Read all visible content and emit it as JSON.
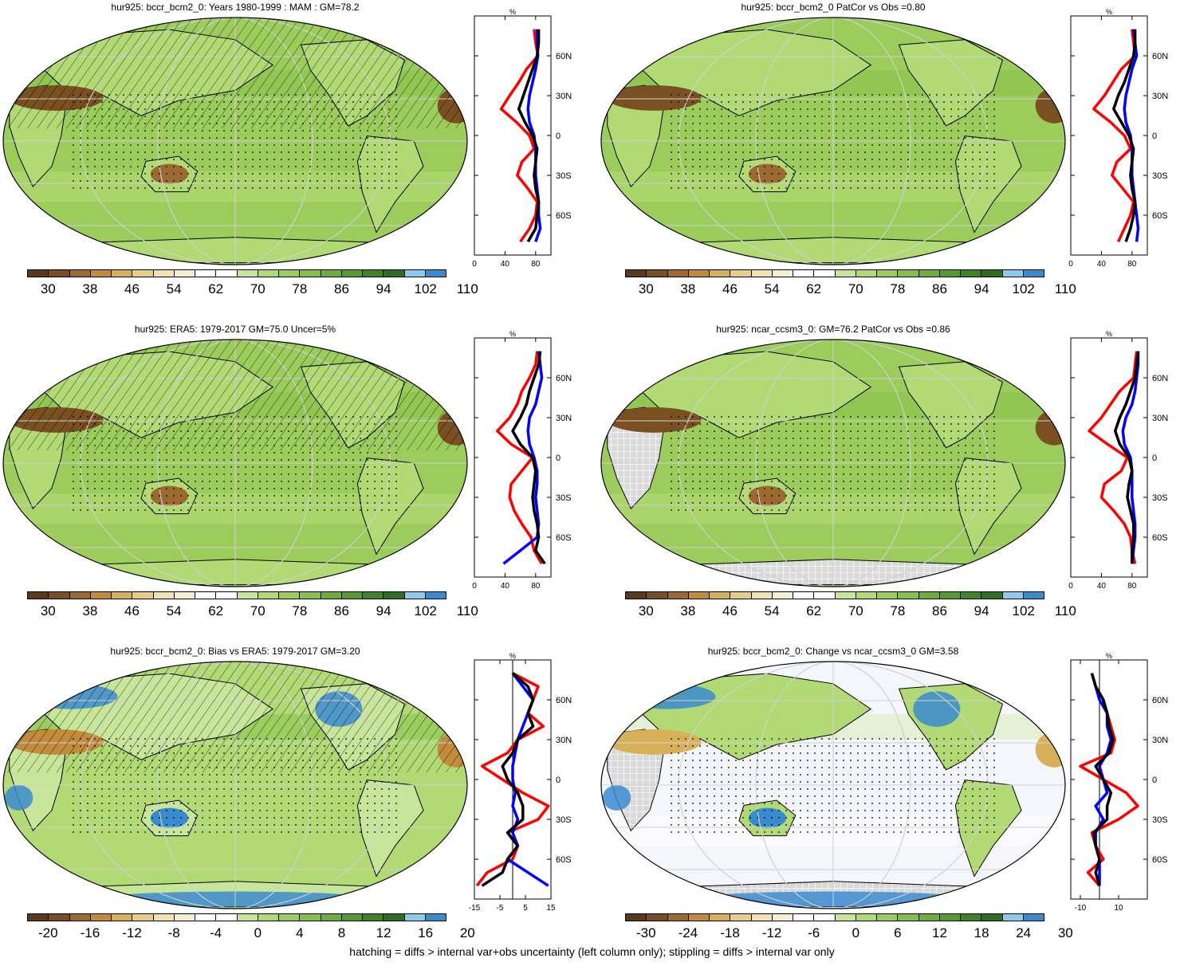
{
  "footnote": "hatching = diffs > internal var+obs uncertainty (left column only); stippling = diffs > internal var only",
  "chart_data": [
    {
      "type": "heatmap",
      "title": "hur925: bccr_bcm2_0: Years 1980-1999 : MAM : GM=78.2",
      "colorbar": {
        "colors": [
          "#5a3a1a",
          "#7a4f22",
          "#9c6a30",
          "#c28c3c",
          "#d8b05a",
          "#e8cd86",
          "#f2e2b0",
          "#f7efd2",
          "#ffffff",
          "#ffffff",
          "#c8e69a",
          "#b2da74",
          "#9ccd5c",
          "#86bf4a",
          "#6fae3c",
          "#579a32",
          "#3f8428",
          "#2d6e20",
          "#8ccbee",
          "#3a8ad0"
        ],
        "labels": [
          "30",
          "38",
          "46",
          "54",
          "62",
          "70",
          "78",
          "86",
          "94",
          "102",
          "110"
        ]
      },
      "profile": {
        "xlabel": "%",
        "xticks": [
          "0",
          "40",
          "80"
        ],
        "xlim": [
          0,
          100
        ],
        "yticks": [
          "60N",
          "30N",
          "0",
          "30S",
          "60S"
        ],
        "lat": [
          80,
          70,
          60,
          50,
          40,
          30,
          20,
          10,
          0,
          -10,
          -20,
          -30,
          -40,
          -50,
          -60,
          -70,
          -80
        ],
        "series": [
          {
            "color": "#ff0000",
            "values": [
              78,
              80,
              83,
              68,
              58,
              46,
              35,
              55,
              72,
              78,
              62,
              56,
              70,
              82,
              80,
              72,
              60
            ]
          },
          {
            "color": "#0000ff",
            "values": [
              82,
              82,
              83,
              80,
              76,
              72,
              70,
              72,
              78,
              80,
              80,
              80,
              82,
              84,
              84,
              86,
              80
            ]
          },
          {
            "color": "#000000",
            "values": [
              84,
              84,
              82,
              76,
              70,
              64,
              58,
              66,
              76,
              82,
              80,
              78,
              80,
              84,
              82,
              80,
              70
            ]
          }
        ]
      }
    },
    {
      "type": "heatmap",
      "title": "hur925: bccr_bcm2_0 PatCor vs Obs =0.80",
      "colorbar": {
        "colors": [
          "#5a3a1a",
          "#7a4f22",
          "#9c6a30",
          "#c28c3c",
          "#d8b05a",
          "#e8cd86",
          "#f2e2b0",
          "#f7efd2",
          "#ffffff",
          "#ffffff",
          "#c8e69a",
          "#b2da74",
          "#9ccd5c",
          "#86bf4a",
          "#6fae3c",
          "#579a32",
          "#3f8428",
          "#2d6e20",
          "#8ccbee",
          "#3a8ad0"
        ],
        "labels": [
          "30",
          "38",
          "46",
          "54",
          "62",
          "70",
          "78",
          "86",
          "94",
          "102",
          "110"
        ]
      },
      "profile": {
        "xlabel": "%",
        "xticks": [
          "0",
          "40",
          "80"
        ],
        "xlim": [
          0,
          100
        ],
        "yticks": [
          "60N",
          "30N",
          "0",
          "30S",
          "60S"
        ],
        "lat": [
          80,
          70,
          60,
          50,
          40,
          30,
          20,
          10,
          0,
          -10,
          -20,
          -30,
          -40,
          -50,
          -60,
          -70,
          -80
        ],
        "series": [
          {
            "color": "#ff0000",
            "values": [
              80,
              82,
              84,
              66,
              55,
              44,
              30,
              52,
              70,
              78,
              60,
              54,
              68,
              82,
              78,
              70,
              62
            ]
          },
          {
            "color": "#0000ff",
            "values": [
              82,
              84,
              86,
              80,
              76,
              72,
              70,
              72,
              78,
              80,
              80,
              80,
              82,
              84,
              86,
              88,
              86
            ]
          },
          {
            "color": "#000000",
            "values": [
              84,
              84,
              82,
              76,
              70,
              62,
              56,
              66,
              76,
              82,
              80,
              78,
              80,
              84,
              82,
              78,
              72
            ]
          }
        ]
      }
    },
    {
      "type": "heatmap",
      "title": "hur925: ERA5: 1979-2017 GM=75.0 Uncer=5%",
      "colorbar": {
        "colors": [
          "#5a3a1a",
          "#7a4f22",
          "#9c6a30",
          "#c28c3c",
          "#d8b05a",
          "#e8cd86",
          "#f2e2b0",
          "#f7efd2",
          "#ffffff",
          "#ffffff",
          "#c8e69a",
          "#b2da74",
          "#9ccd5c",
          "#86bf4a",
          "#6fae3c",
          "#579a32",
          "#3f8428",
          "#2d6e20",
          "#8ccbee",
          "#3a8ad0"
        ],
        "labels": [
          "30",
          "38",
          "46",
          "54",
          "62",
          "70",
          "78",
          "86",
          "94",
          "102",
          "110"
        ]
      },
      "profile": {
        "xlabel": "%",
        "xticks": [
          "0",
          "40",
          "80"
        ],
        "xlim": [
          0,
          100
        ],
        "yticks": [
          "60N",
          "30N",
          "0",
          "30S",
          "60S"
        ],
        "lat": [
          80,
          70,
          60,
          50,
          40,
          30,
          20,
          10,
          0,
          -10,
          -20,
          -30,
          -40,
          -50,
          -60,
          -70,
          -80
        ],
        "series": [
          {
            "color": "#ff0000",
            "values": [
              82,
              80,
              72,
              62,
              56,
              46,
              30,
              48,
              76,
              62,
              48,
              46,
              52,
              62,
              74,
              78,
              88
            ]
          },
          {
            "color": "#0000ff",
            "values": [
              84,
              86,
              88,
              84,
              80,
              72,
              70,
              72,
              78,
              82,
              82,
              80,
              82,
              84,
              82,
              60,
              38
            ]
          },
          {
            "color": "#000000",
            "values": [
              86,
              84,
              78,
              72,
              68,
              60,
              50,
              60,
              76,
              80,
              78,
              76,
              78,
              82,
              84,
              80,
              92
            ]
          }
        ]
      }
    },
    {
      "type": "heatmap",
      "title": "hur925: ncar_ccsm3_0: GM=76.2 PatCor vs Obs =0.86",
      "colorbar": {
        "colors": [
          "#5a3a1a",
          "#7a4f22",
          "#9c6a30",
          "#c28c3c",
          "#d8b05a",
          "#e8cd86",
          "#f2e2b0",
          "#f7efd2",
          "#ffffff",
          "#ffffff",
          "#c8e69a",
          "#b2da74",
          "#9ccd5c",
          "#86bf4a",
          "#6fae3c",
          "#579a32",
          "#3f8428",
          "#2d6e20",
          "#8ccbee",
          "#3a8ad0"
        ],
        "labels": [
          "30",
          "38",
          "46",
          "54",
          "62",
          "70",
          "78",
          "86",
          "94",
          "102",
          "110"
        ]
      },
      "profile": {
        "xlabel": "%",
        "xticks": [
          "0",
          "40",
          "80"
        ],
        "xlim": [
          0,
          100
        ],
        "yticks": [
          "60N",
          "30N",
          "0",
          "30S",
          "60S"
        ],
        "lat": [
          80,
          70,
          60,
          50,
          40,
          30,
          20,
          10,
          0,
          -10,
          -20,
          -30,
          -40,
          -50,
          -60,
          -70,
          -80
        ],
        "series": [
          {
            "color": "#ff0000",
            "values": [
              86,
              84,
              82,
              64,
              52,
              40,
              24,
              48,
              74,
              66,
              44,
              40,
              56,
              70,
              78,
              80,
              84
            ]
          },
          {
            "color": "#0000ff",
            "values": [
              88,
              88,
              86,
              84,
              80,
              72,
              68,
              70,
              78,
              80,
              80,
              80,
              82,
              84,
              84,
              82,
              80
            ]
          },
          {
            "color": "#000000",
            "values": [
              88,
              86,
              84,
              78,
              72,
              64,
              58,
              64,
              76,
              80,
              76,
              74,
              78,
              82,
              82,
              80,
              80
            ]
          }
        ]
      }
    },
    {
      "type": "heatmap",
      "title": "hur925: bccr_bcm2_0: Bias vs ERA5: 1979-2017 GM=3.20",
      "colorbar": {
        "colors": [
          "#5a3a1a",
          "#7a4f22",
          "#9c6a30",
          "#c28c3c",
          "#d8b05a",
          "#e8cd86",
          "#f2e2b0",
          "#f7efd2",
          "#ffffff",
          "#ffffff",
          "#c8e69a",
          "#b2da74",
          "#9ccd5c",
          "#86bf4a",
          "#6fae3c",
          "#579a32",
          "#3f8428",
          "#2d6e20",
          "#8ccbee",
          "#3a8ad0"
        ],
        "labels": [
          "-20",
          "-16",
          "-12",
          "-8",
          "-4",
          "0",
          "4",
          "8",
          "12",
          "16",
          "20"
        ]
      },
      "profile": {
        "xlabel": "%",
        "xticks": [
          "-15",
          "-5",
          "5",
          "15"
        ],
        "xlim": [
          -15,
          15
        ],
        "yticks": [
          "60N",
          "30N",
          "0",
          "30S",
          "60S"
        ],
        "lat": [
          80,
          70,
          60,
          50,
          40,
          30,
          20,
          10,
          0,
          -10,
          -20,
          -30,
          -40,
          -50,
          -60,
          -70,
          -80
        ],
        "series": [
          {
            "color": "#ff0000",
            "values": [
              0,
              10,
              8,
              6,
              12,
              2,
              -2,
              -12,
              -4,
              4,
              14,
              10,
              -2,
              2,
              0,
              -10,
              -14
            ]
          },
          {
            "color": "#0000ff",
            "values": [
              0,
              4,
              8,
              6,
              4,
              2,
              1,
              0,
              0,
              1,
              0,
              2,
              0,
              2,
              -2,
              6,
              14
            ]
          },
          {
            "color": "#000000",
            "values": [
              0,
              6,
              8,
              6,
              8,
              2,
              0,
              -4,
              -2,
              2,
              4,
              4,
              -2,
              2,
              -2,
              -4,
              -12
            ]
          }
        ]
      }
    },
    {
      "type": "heatmap",
      "title": "hur925: bccr_bcm2_0: Change vs ncar_ccsm3_0 GM=3.58",
      "colorbar": {
        "colors": [
          "#5a3a1a",
          "#7a4f22",
          "#9c6a30",
          "#c28c3c",
          "#d8b05a",
          "#e8cd86",
          "#f2e2b0",
          "#f7efd2",
          "#ffffff",
          "#ffffff",
          "#c8e69a",
          "#b2da74",
          "#9ccd5c",
          "#86bf4a",
          "#6fae3c",
          "#579a32",
          "#3f8428",
          "#2d6e20",
          "#8ccbee",
          "#3a8ad0"
        ],
        "labels": [
          "-30",
          "-24",
          "-18",
          "-12",
          "-6",
          "0",
          "6",
          "12",
          "18",
          "24",
          "30"
        ]
      },
      "profile": {
        "xlabel": "%",
        "xticks": [
          "-10",
          "10"
        ],
        "xlim": [
          -15,
          25
        ],
        "yticks": [
          "60N",
          "30N",
          "0",
          "30S",
          "60S"
        ],
        "lat": [
          80,
          70,
          60,
          50,
          40,
          30,
          20,
          10,
          0,
          -10,
          -20,
          -30,
          -40,
          -50,
          -60,
          -70,
          -80
        ],
        "series": [
          {
            "color": "#ff0000",
            "values": [
              -4,
              -2,
              2,
              4,
              6,
              8,
              6,
              -10,
              2,
              14,
              20,
              10,
              -4,
              -2,
              2,
              -6,
              0
            ]
          },
          {
            "color": "#0000ff",
            "values": [
              -4,
              -2,
              0,
              4,
              4,
              6,
              4,
              0,
              2,
              4,
              -2,
              2,
              -2,
              -2,
              0,
              0,
              0
            ]
          },
          {
            "color": "#000000",
            "values": [
              -4,
              -2,
              2,
              4,
              5,
              7,
              5,
              -2,
              2,
              6,
              4,
              4,
              -3,
              -2,
              0,
              -2,
              0
            ]
          }
        ]
      }
    }
  ]
}
